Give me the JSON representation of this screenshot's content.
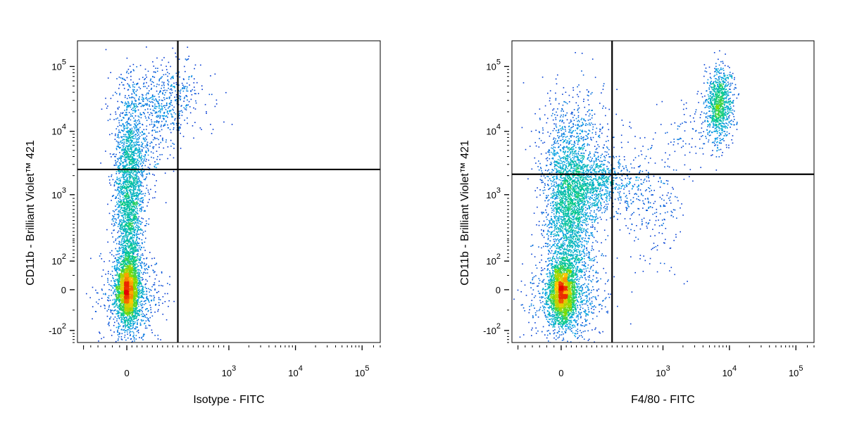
{
  "chart_data": [
    {
      "type": "scatter",
      "subtype": "flow-cytometry-density-dot-plot",
      "scale": "biexponential",
      "title": "",
      "xlabel": "Isotype - FITC",
      "ylabel": "CD11b - Brilliant Violet™ 421",
      "x_ticks": [
        {
          "value": 0,
          "base": "0",
          "exp": ""
        },
        {
          "value": 1000,
          "base": "10",
          "exp": "3"
        },
        {
          "value": 10000,
          "base": "10",
          "exp": "4"
        },
        {
          "value": 100000,
          "base": "10",
          "exp": "5"
        }
      ],
      "y_ticks": [
        {
          "value": 100000,
          "base": "10",
          "exp": "5"
        },
        {
          "value": 10000,
          "base": "10",
          "exp": "4"
        },
        {
          "value": 1000,
          "base": "10",
          "exp": "3"
        },
        {
          "value": 100,
          "base": "10",
          "exp": "2"
        },
        {
          "value": 0,
          "base": "0",
          "exp": ""
        },
        {
          "value": -100,
          "base": "-10",
          "exp": "2"
        }
      ],
      "quadrant_gate": {
        "x": 500,
        "y": 2500
      },
      "populations": [
        {
          "label": "CD11b-low, FITC-negative",
          "x_center": 0,
          "y_center": 0,
          "density": "very high"
        },
        {
          "label": "CD11b-mid, FITC-negative",
          "x_center": 0,
          "y_center": 500,
          "density": "high"
        },
        {
          "label": "CD11b-high, FITC-low",
          "x_center": 150,
          "y_center": 20000,
          "density": "medium"
        }
      ],
      "grid": false,
      "legend": "none"
    },
    {
      "type": "scatter",
      "subtype": "flow-cytometry-density-dot-plot",
      "scale": "biexponential",
      "title": "",
      "xlabel": "F4/80 - FITC",
      "ylabel": "CD11b - Brilliant Violet™ 421",
      "x_ticks": [
        {
          "value": 0,
          "base": "0",
          "exp": ""
        },
        {
          "value": 1000,
          "base": "10",
          "exp": "3"
        },
        {
          "value": 10000,
          "base": "10",
          "exp": "4"
        },
        {
          "value": 100000,
          "base": "10",
          "exp": "5"
        }
      ],
      "y_ticks": [
        {
          "value": 100000,
          "base": "10",
          "exp": "5"
        },
        {
          "value": 10000,
          "base": "10",
          "exp": "4"
        },
        {
          "value": 1000,
          "base": "10",
          "exp": "3"
        },
        {
          "value": 100,
          "base": "10",
          "exp": "2"
        },
        {
          "value": 0,
          "base": "0",
          "exp": ""
        },
        {
          "value": -100,
          "base": "-10",
          "exp": "2"
        }
      ],
      "quadrant_gate": {
        "x": 500,
        "y": 2100
      },
      "populations": [
        {
          "label": "CD11b-low, F4/80-negative",
          "x_center": 0,
          "y_center": 0,
          "density": "very high"
        },
        {
          "label": "CD11b-mid, F4/80-low",
          "x_center": 60,
          "y_center": 800,
          "density": "high"
        },
        {
          "label": "CD11b-high, F4/80-high",
          "x_center": 8000,
          "y_center": 22000,
          "density": "high"
        }
      ],
      "grid": false,
      "legend": "none"
    }
  ]
}
